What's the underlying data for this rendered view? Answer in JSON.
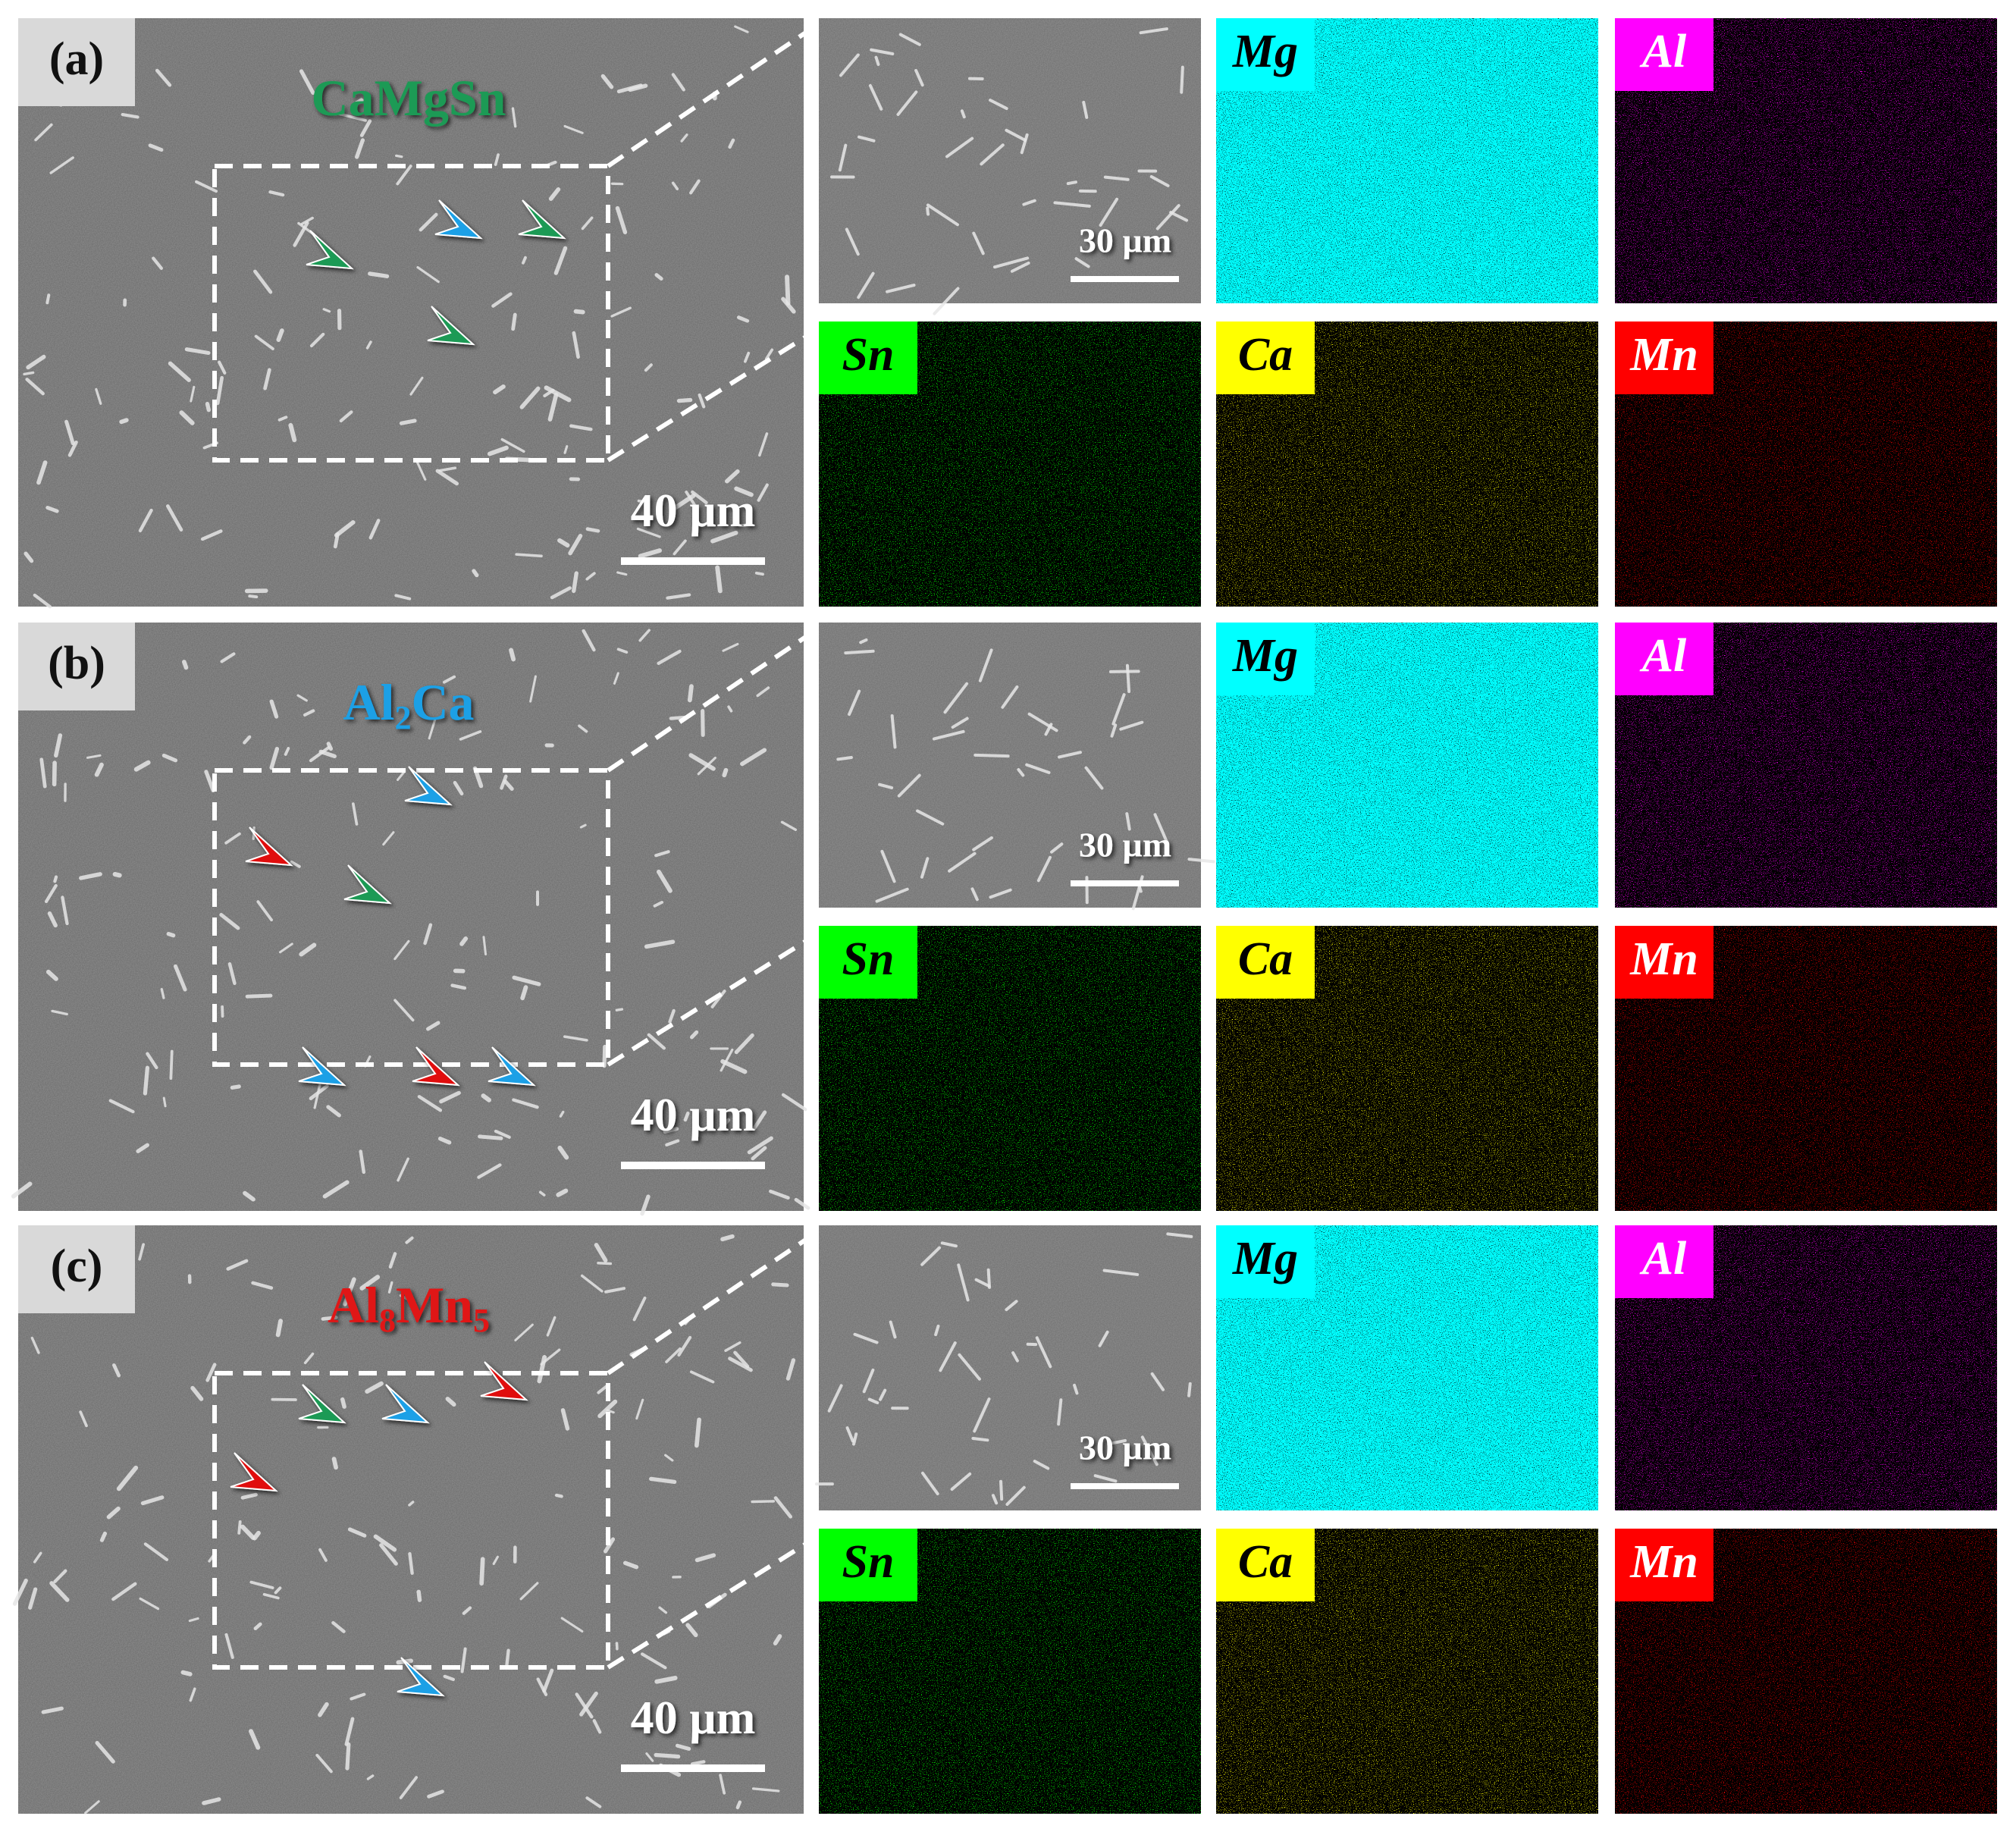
{
  "panels": [
    {
      "label": "(a)",
      "phase": [
        {
          "t": "CaMgSn"
        }
      ],
      "phase_color": "#1e9a55",
      "scale_sem": "40 µm",
      "scale_map": "30 µm"
    },
    {
      "label": "(b)",
      "phase": [
        {
          "t": "Al"
        },
        {
          "t": "2",
          "sub": true
        },
        {
          "t": "Ca"
        }
      ],
      "phase_color": "#1aa0e6",
      "scale_sem": "40 µm",
      "scale_map": "30 µm"
    },
    {
      "label": "(c)",
      "phase": [
        {
          "t": "Al"
        },
        {
          "t": "8",
          "sub": true
        },
        {
          "t": "Mn"
        },
        {
          "t": "5",
          "sub": true
        }
      ],
      "phase_color": "#e01818",
      "scale_sem": "40 µm",
      "scale_map": "30 µm"
    }
  ],
  "maps": [
    {
      "symbol": "Mg",
      "color": "#00ffff"
    },
    {
      "symbol": "Al",
      "color": "#ff00ff"
    },
    {
      "symbol": "Sn",
      "color": "#00ff00"
    },
    {
      "symbol": "Ca",
      "color": "#ffff00"
    },
    {
      "symbol": "Mn",
      "color": "#ff0000"
    }
  ]
}
